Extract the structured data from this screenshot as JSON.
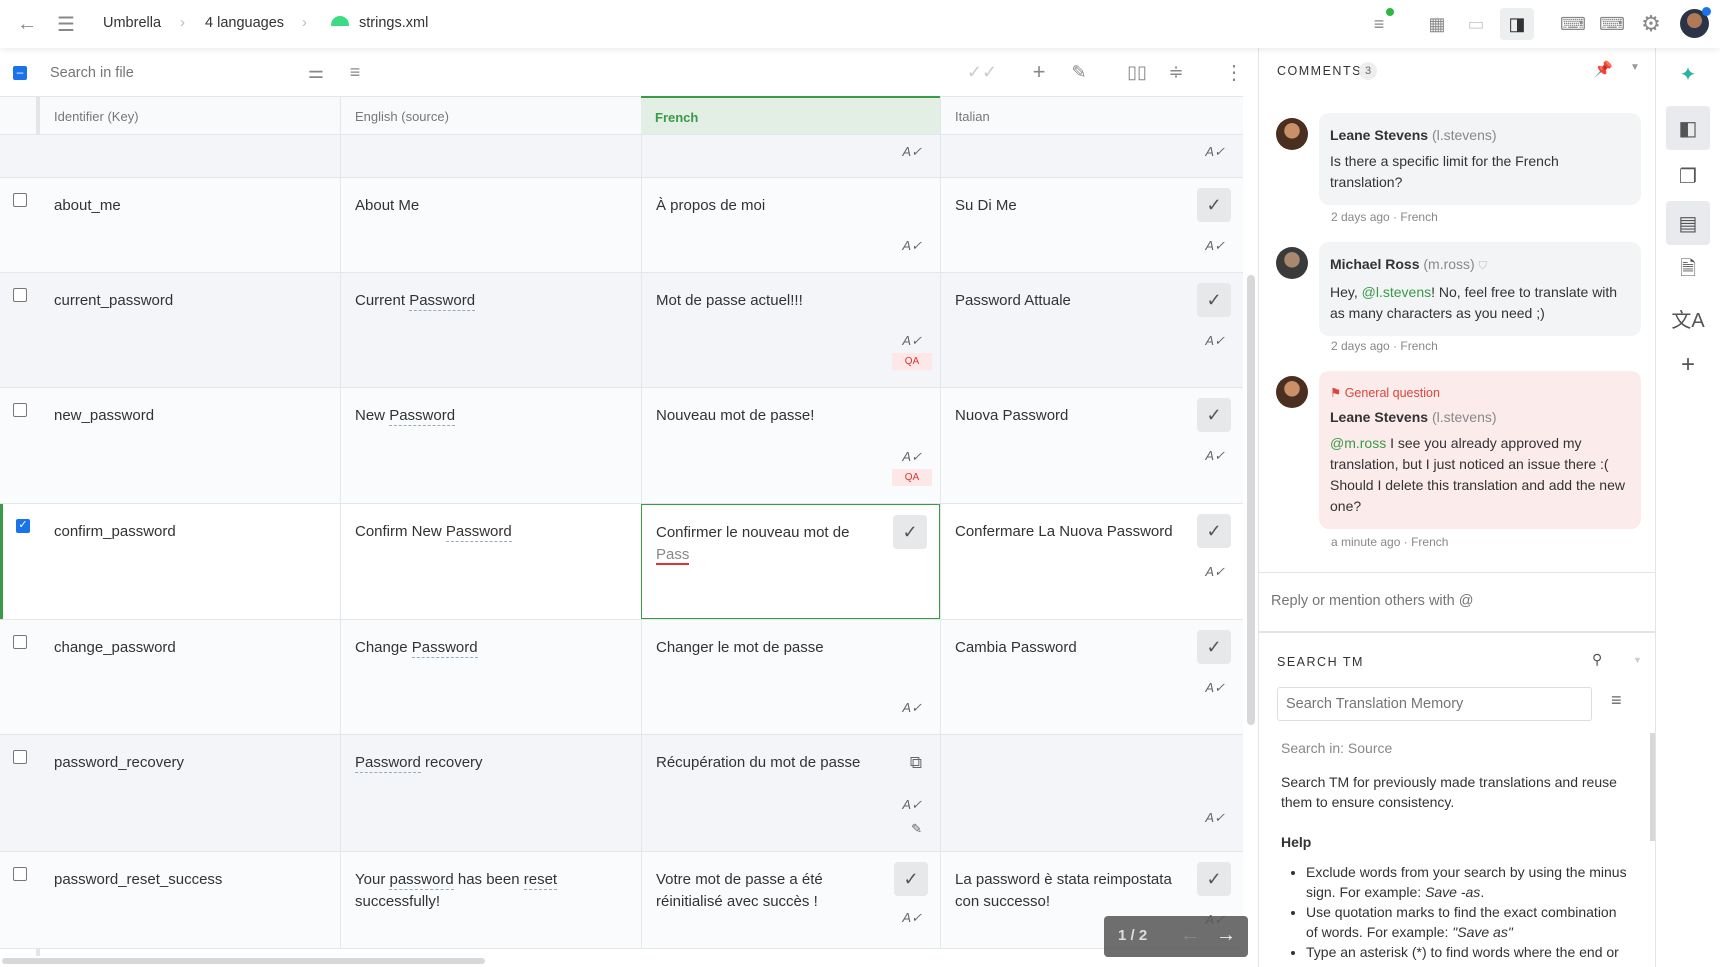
{
  "breadcrumb": {
    "project": "Umbrella",
    "languages": "4 languages",
    "file": "strings.xml"
  },
  "toolbar": {
    "search_placeholder": "Search in file"
  },
  "columns": [
    "Identifier (Key)",
    "English (source)",
    "French",
    "Italian"
  ],
  "colors": {
    "accent_green": "#3a9a48",
    "french_header_bg": "#e3efe5",
    "checkbox_blue": "#1a73e8",
    "qa_red": "#d33"
  },
  "rows": [
    {
      "key": "",
      "source": "",
      "terms": [],
      "fr": "",
      "it": "",
      "fr_spell": true,
      "it_spell": true
    },
    {
      "key": "about_me",
      "source": "About Me",
      "terms": [],
      "fr": "À propos de moi",
      "it": "Su Di Me",
      "fr_spell": true,
      "it_ok": true,
      "it_spell": true
    },
    {
      "key": "current_password",
      "source": "Current Password",
      "terms": [
        "Password"
      ],
      "fr": "Mot de passe actuel!!!",
      "it": "Password Attuale",
      "fr_spell": true,
      "fr_qa": "QA",
      "it_ok": true,
      "it_spell": true
    },
    {
      "key": "new_password",
      "source": "New Password",
      "terms": [
        "Password"
      ],
      "fr": "Nouveau mot de passe!",
      "it": "Nuova Password",
      "fr_spell": true,
      "fr_qa": "QA",
      "it_ok": true,
      "it_spell": true
    },
    {
      "key": "confirm_password",
      "source": "Confirm New Password",
      "terms": [
        "Password"
      ],
      "fr": "Confirmer le nouveau mot de",
      "fr_misspelled": "Pass",
      "it": "Confermare La Nuova Password",
      "selected": true,
      "editing": true,
      "fr_ok": true,
      "it_ok": true,
      "it_spell": true
    },
    {
      "key": "change_password",
      "source": "Change Password",
      "terms": [
        "Password"
      ],
      "fr": "Changer le mot de passe",
      "it": "Cambia Password",
      "fr_spell": true,
      "it_ok": true,
      "it_spell": true
    },
    {
      "key": "password_recovery",
      "source": "Password recovery",
      "terms": [
        "Password"
      ],
      "fr": "Récupération du mot de passe",
      "it": "",
      "fr_copy": true,
      "fr_spell": true,
      "fr_edit": true,
      "it_spell": true
    },
    {
      "key": "password_reset_success",
      "source": "Your password has been reset successfully!",
      "terms": [
        "password",
        "reset"
      ],
      "fr": "Votre mot de passe a été réinitialisé avec succès !",
      "it": "La password è stata reimpostata con successo!",
      "fr_ok": true,
      "fr_spell": true,
      "it_ok": true,
      "it_spell": true
    }
  ],
  "pagination": {
    "label": "1 / 2"
  },
  "comments": {
    "title": "COMMENTS",
    "count": "3",
    "items": [
      {
        "author": "Leane Stevens",
        "handle": "(l.stevens)",
        "text": "Is there a specific limit for the French translation?",
        "time": "2 days ago",
        "lang": "French"
      },
      {
        "author": "Michael Ross",
        "handle": "(m.ross)",
        "mention": "@l.stevens",
        "text_before": "Hey, ",
        "text_after": "! No, feel free to translate with as many characters as you need ;)",
        "time": "2 days ago",
        "lang": "French"
      },
      {
        "flag": "General question",
        "author": "Leane Stevens",
        "handle": "(l.stevens)",
        "mention": "@m.ross",
        "text_after": " I see you already approved my translation, but I just noticed an issue there :( Should I delete this translation and add the new one?",
        "time": "a minute ago",
        "lang": "French"
      }
    ],
    "reply_placeholder": "Reply or mention others with @"
  },
  "tm": {
    "title": "SEARCH TM",
    "placeholder": "Search Translation Memory",
    "search_in": "Search in: Source",
    "description": "Search TM for previously made translations and reuse them to ensure consistency.",
    "help_title": "Help",
    "help": [
      {
        "text": "Exclude words from your search by using the minus sign. For example: ",
        "example": "Save -as",
        "end": "."
      },
      {
        "text": "Use quotation marks to find the exact combination of words. For example: ",
        "example": "\"Save as\"",
        "end": ""
      },
      {
        "text": "Type an asterisk (*) to find words where the end or",
        "example": "",
        "end": ""
      }
    ]
  }
}
